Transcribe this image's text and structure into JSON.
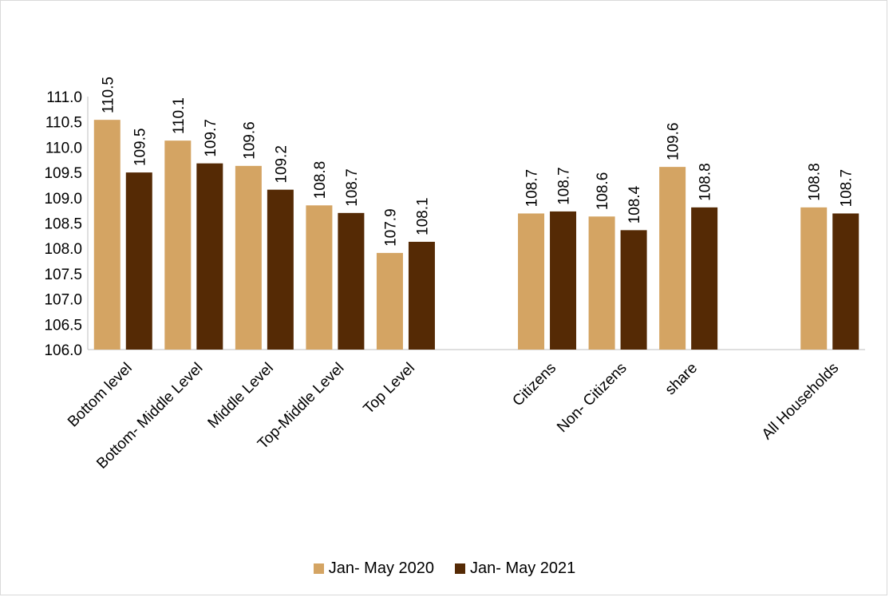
{
  "chart_data": {
    "type": "bar",
    "title": "",
    "xlabel": "",
    "ylabel": "",
    "ylim": [
      106.0,
      111.0
    ],
    "yticks": [
      "106.0",
      "106.5",
      "107.0",
      "107.5",
      "108.0",
      "108.5",
      "109.0",
      "109.5",
      "110.0",
      "110.5",
      "111.0"
    ],
    "grid": false,
    "legend_position": "bottom",
    "categories": [
      "Bottom level",
      "Bottom- Middle  Level",
      "Middle Level",
      "Top-Middle Level",
      "Top Level",
      "",
      "Citizens",
      "Non- Citizens",
      "share",
      "",
      "All Households"
    ],
    "series": [
      {
        "name": "Jan- May 2020",
        "color": "#D4A463",
        "values": [
          110.54,
          110.13,
          109.63,
          108.85,
          107.91,
          null,
          108.69,
          108.63,
          109.61,
          null,
          108.81
        ],
        "labels": [
          "110.5",
          "110.1",
          "109.6",
          "108.8",
          "107.9",
          "",
          "108.7",
          "108.6",
          "109.6",
          "",
          "108.8"
        ]
      },
      {
        "name": "Jan- May 2021",
        "color": "#552A05",
        "values": [
          109.5,
          109.68,
          109.16,
          108.7,
          108.13,
          null,
          108.73,
          108.36,
          108.81,
          null,
          108.69
        ],
        "labels": [
          "109.5",
          "109.7",
          "109.2",
          "108.7",
          "108.1",
          "",
          "108.7",
          "108.4",
          "108.8",
          "",
          "108.7"
        ]
      }
    ]
  }
}
